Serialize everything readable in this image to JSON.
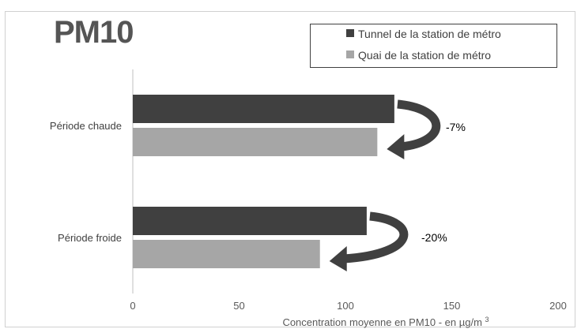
{
  "chart_data": {
    "type": "bar",
    "orientation": "horizontal",
    "title": "PM10",
    "categories": [
      "Période chaude",
      "Période froide"
    ],
    "series": [
      {
        "name": "Tunnel de la station de métro",
        "color": "#404040",
        "values": [
          123,
          110
        ]
      },
      {
        "name": "Quai de la station de métro",
        "color": "#a6a6a6",
        "values": [
          115,
          88
        ]
      }
    ],
    "annotations": [
      "-7%",
      "-20%"
    ],
    "xlabel": "Concentration moyenne en PM10 - en µg/m³",
    "xlim": [
      0,
      200
    ],
    "xticks": [
      "0",
      "50",
      "100",
      "150",
      "200"
    ],
    "legend_position": "top-right",
    "grid": false
  }
}
